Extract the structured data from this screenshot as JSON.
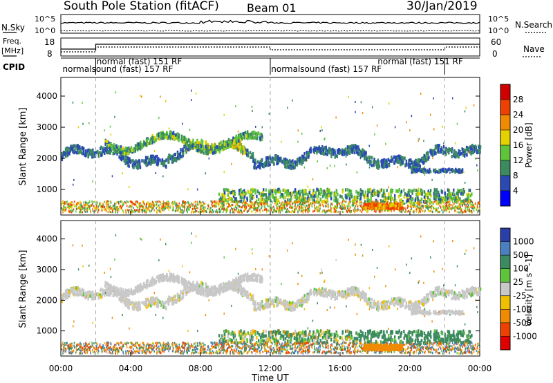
{
  "header": {
    "station": "South Pole Station (fitACF)",
    "beam": "Beam 01",
    "date": "30/Jan/2019"
  },
  "strip_panels": {
    "nsky_label": "N.Sky",
    "nsky_top_tick": "10^5",
    "nsky_bottom_tick": "10^0",
    "nsearch_label": "N.Search",
    "nsearch_top_tick": "10^5",
    "nsearch_bottom_tick": "10^0",
    "freq_label": "Freq.",
    "freq_unit": "[MHz]",
    "freq_ticks": [
      "18",
      "8"
    ],
    "nave_label": "Nave",
    "nave_ticks": [
      "60",
      "0"
    ],
    "cpid_label": "CPID",
    "cpid_entries": [
      {
        "text": "normal (fast) 151 RF",
        "row": "upper",
        "time_h": 2.05
      },
      {
        "text": "normalsound (fast) 157 RF",
        "row": "lower",
        "time_h": 0.1
      },
      {
        "text": "normalsound (fast) 157 RF",
        "row": "lower",
        "time_h": 12.05
      },
      {
        "text": "normal (fast) 151 RF",
        "row": "upper",
        "time_h": 18.15
      }
    ],
    "cpid_change_hours": [
      2,
      12,
      22
    ]
  },
  "chart_data": [
    {
      "type": "heatmap",
      "parameter": "Power",
      "colorbar_label": "Power [dB]",
      "colorbar_ticks": [
        "4",
        "8",
        "12",
        "16",
        "20",
        "24",
        "28"
      ],
      "colorbar_colors": [
        "#0000ff",
        "#2a49b5",
        "#3c8a60",
        "#5ec43a",
        "#e5d000",
        "#f08a00",
        "#ee4000",
        "#d00000"
      ],
      "ylabel": "Slant Range [km]",
      "yticks": [
        1000,
        2000,
        3000,
        4000
      ],
      "ylim": [
        180,
        4600
      ],
      "xlim_hours": [
        0,
        24
      ],
      "features": [
        {
          "name": "F-region band",
          "t_start": 0,
          "t_end": 24,
          "range_km": 2050,
          "mean_power_db": 9
        },
        {
          "name": "Upper band",
          "t_start": 5,
          "t_end": 11,
          "range_km": 2600,
          "mean_power_db": 14
        },
        {
          "name": "Near-range band",
          "t_start": 9,
          "t_end": 23.5,
          "range_km": 820,
          "mean_power_db": 11
        },
        {
          "name": "Ground scatter",
          "t_start": 0,
          "t_end": 24,
          "range_km": 450,
          "mean_power_db": 20
        },
        {
          "name": "Strong patch",
          "t_start": 17.3,
          "t_end": 19.5,
          "range_km": 450,
          "mean_power_db": 22
        }
      ]
    },
    {
      "type": "heatmap",
      "parameter": "Velocity",
      "colorbar_label": "Velocity [m s^-1]",
      "colorbar_ticks": [
        "1000",
        "500",
        "100",
        "25",
        "-25",
        "-100",
        "-500",
        "-1000"
      ],
      "colorbar_colors": [
        "#2b3fa8",
        "#4a7fc0",
        "#3c8a60",
        "#5ec43a",
        "#c8c8c8",
        "#f0c000",
        "#f08a00",
        "#ee4000",
        "#e00000"
      ],
      "ylabel": "Slant Range [km]",
      "yticks": [
        1000,
        2000,
        3000,
        4000
      ],
      "ylim": [
        180,
        4600
      ],
      "xlim_hours": [
        0,
        24
      ],
      "features": [
        {
          "name": "F-region band",
          "t_start": 0,
          "t_end": 24,
          "range_km": 2050,
          "mean_velocity": 0
        },
        {
          "name": "Upper band",
          "t_start": 5,
          "t_end": 11,
          "range_km": 2600,
          "mean_velocity": 0
        },
        {
          "name": "Near-range band",
          "t_start": 9,
          "t_end": 23.5,
          "range_km": 820,
          "mean_velocity": 250
        },
        {
          "name": "Strong patch",
          "t_start": 17.3,
          "t_end": 19.5,
          "range_km": 450,
          "mean_velocity": -300
        }
      ]
    }
  ],
  "xaxis": {
    "label": "Time UT",
    "ticks": [
      "00:00",
      "04:00",
      "08:00",
      "12:00",
      "16:00",
      "20:00",
      "00:00"
    ],
    "tick_hours": [
      0,
      4,
      8,
      12,
      16,
      20,
      24
    ]
  }
}
